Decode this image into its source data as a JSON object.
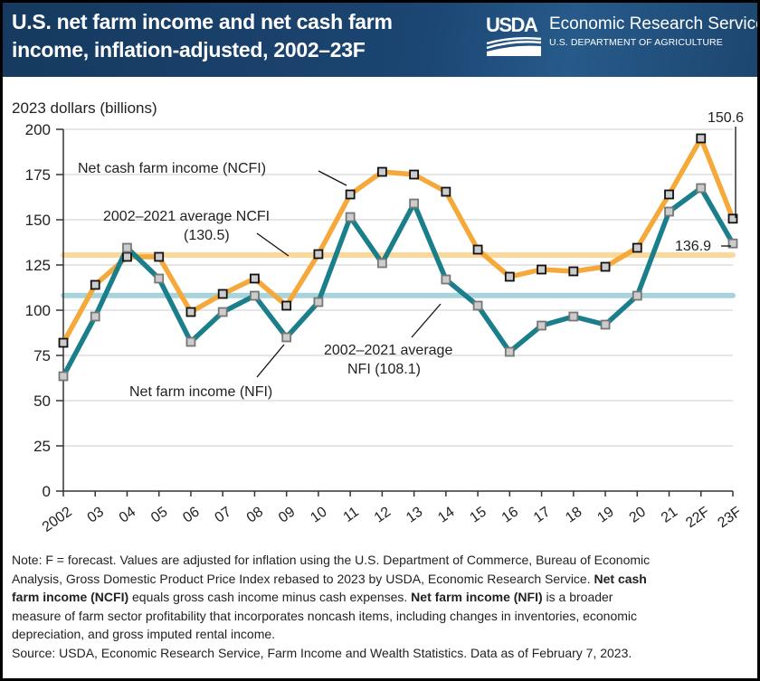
{
  "header": {
    "title_line1": "U.S. net farm income and net cash farm",
    "title_line2": "income, inflation-adjusted, 2002–23F",
    "logo_text": "USDA",
    "agency": "Economic Research Service",
    "department": "U.S. DEPARTMENT OF AGRICULTURE"
  },
  "colors": {
    "header_bg": "#1b4572",
    "ncfi": "#f5a93b",
    "nfi": "#1b7f8b",
    "ncfi_avg": "#fbd99b",
    "nfi_avg": "#a9d3da",
    "marker_fill": "#cccccc"
  },
  "chart_data": {
    "type": "line",
    "title": "U.S. net farm income and net cash farm income, inflation-adjusted, 2002–23F",
    "ylabel": "2023 dollars (billions)",
    "xlabel": "",
    "ylim": [
      0,
      200
    ],
    "yticks": [
      0,
      25,
      50,
      75,
      100,
      125,
      150,
      175,
      200
    ],
    "grid": true,
    "categories": [
      "2002",
      "03",
      "04",
      "05",
      "06",
      "07",
      "08",
      "09",
      "10",
      "11",
      "12",
      "13",
      "14",
      "15",
      "16",
      "17",
      "18",
      "19",
      "20",
      "21",
      "22F",
      "23F"
    ],
    "series": [
      {
        "name": "Net cash farm income (NCFI)",
        "values": [
          82,
          114,
          129.5,
          129.5,
          99,
          109,
          117.5,
          102.5,
          131,
          164,
          176.5,
          175,
          165.5,
          133.5,
          118.5,
          122.5,
          121.5,
          124,
          134.5,
          164,
          195,
          150.6
        ]
      },
      {
        "name": "Net farm income (NFI)",
        "values": [
          63.5,
          96.5,
          134.5,
          117.5,
          82.5,
          99,
          108,
          85,
          104.5,
          151.5,
          126,
          159,
          117,
          102.5,
          77,
          91.5,
          96.5,
          92,
          108,
          154.5,
          167.5,
          136.9
        ]
      }
    ],
    "reference_lines": [
      {
        "name": "2002–2021 average NCFI",
        "value": 130.5
      },
      {
        "name": "2002–2021 average NFI",
        "value": 108.1
      }
    ],
    "annotations": {
      "ncfi_label": "Net cash farm income (NCFI)",
      "nfi_label": "Net farm income (NFI)",
      "ncfi_avg_line1": "2002–2021 average NCFI",
      "ncfi_avg_line2": "(130.5)",
      "nfi_avg_line1": "2002–2021 average",
      "nfi_avg_line2": "NFI (108.1)",
      "ncfi_last_value": "150.6",
      "nfi_last_value": "136.9"
    }
  },
  "footer": {
    "note_l1": "Note: F = forecast. Values are adjusted for inflation using the U.S. Department of Commerce, Bureau of Economic",
    "note_l2a": "Analysis, Gross Domestic Product Price Index rebased to 2023 by USDA, Economic Research Service. ",
    "note_l2b": "Net cash",
    "note_l3a": "farm income (NCFI)",
    "note_l3b": " equals gross cash income minus cash expenses. ",
    "note_l3c": "Net farm income (NFI)",
    "note_l3d": " is a broader",
    "note_l4": "measure of farm sector profitability that incorporates noncash items, including changes in inventories, economic",
    "note_l5": "depreciation, and gross imputed rental income.",
    "source": "Source: USDA, Economic Research Service, Farm Income and Wealth Statistics. Data as of February 7, 2023."
  }
}
